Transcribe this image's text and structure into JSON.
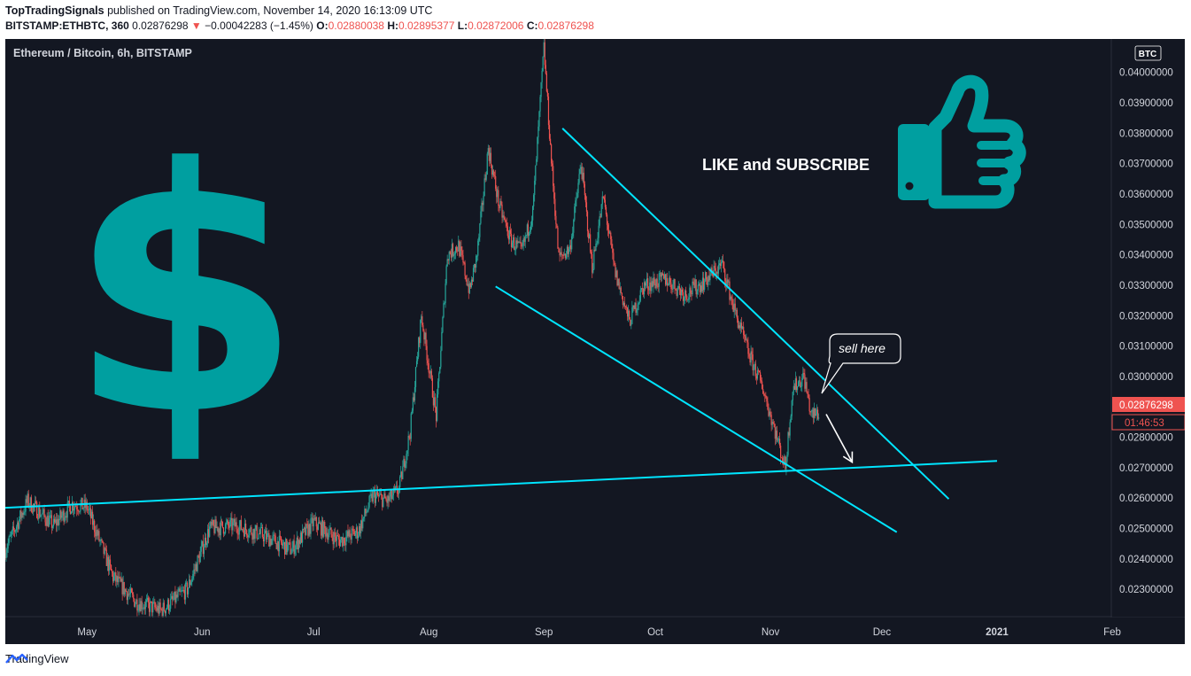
{
  "header": {
    "author": "TopTradingSignals",
    "published_text": "published on TradingView.com, November 14, 2020 16:13:09 UTC",
    "symbol": "BITSTAMP:ETHBTC, 360",
    "last": "0.02876298",
    "arrow": "▼",
    "change": "−0.00042283 (−1.45%)",
    "o_label": "O:",
    "o_value": "0.02880038",
    "h_label": "H:",
    "h_value": "0.02895377",
    "l_label": "L:",
    "l_value": "0.02872006",
    "c_label": "C:",
    "c_value": "0.02876298"
  },
  "chart_title": "Ethereum / Bitcoin, 6h, BITSTAMP",
  "currency_badge": "BTC",
  "price_tag": "0.02876298",
  "countdown_tag": "01:46:53",
  "annotation_like": "LIKE and SUBSCRIBE",
  "annotation_sell": "sell here",
  "dollar_symbol": "$",
  "thumbs_icon": "thumbs-up-icon",
  "footer_brand": "TradingView",
  "colors": {
    "background": "#131722",
    "up": "#26a69a",
    "down": "#ef5350",
    "trendline": "#00e5ff",
    "teal_art": "#009fa0",
    "axis_text": "#d1d4dc"
  },
  "chart_data": {
    "type": "candlestick",
    "title": "Ethereum / Bitcoin, 6h, BITSTAMP",
    "x_ticks": [
      "May",
      "Jun",
      "Jul",
      "Aug",
      "Sep",
      "Oct",
      "Nov",
      "Dec",
      "2021",
      "Feb"
    ],
    "y_ticks": [
      "0.04000000",
      "0.03900000",
      "0.03800000",
      "0.03700000",
      "0.03600000",
      "0.03500000",
      "0.03400000",
      "0.03300000",
      "0.03200000",
      "0.03100000",
      "0.03000000",
      "0.02900000",
      "0.02800000",
      "0.02700000",
      "0.02600000",
      "0.02500000",
      "0.02400000",
      "0.02300000"
    ],
    "ylim": [
      0.0221,
      0.0411
    ],
    "xlim": [
      "2020-04-09",
      "2021-02-01"
    ],
    "grid": false,
    "series": [
      {
        "values": [
          [
            "2020-04-09",
            0.0243
          ],
          [
            "2020-04-15",
            0.0259
          ],
          [
            "2020-04-22",
            0.0251
          ],
          [
            "2020-04-27",
            0.0258
          ],
          [
            "2020-05-01",
            0.0257
          ],
          [
            "2020-05-08",
            0.0234
          ],
          [
            "2020-05-14",
            0.0226
          ],
          [
            "2020-05-21",
            0.0223
          ],
          [
            "2020-05-28",
            0.023
          ],
          [
            "2020-06-03",
            0.025
          ],
          [
            "2020-06-10",
            0.0251
          ],
          [
            "2020-06-17",
            0.0248
          ],
          [
            "2020-06-25",
            0.0243
          ],
          [
            "2020-07-01",
            0.0252
          ],
          [
            "2020-07-08",
            0.0246
          ],
          [
            "2020-07-13",
            0.0249
          ],
          [
            "2020-07-17",
            0.0261
          ],
          [
            "2020-07-21",
            0.0259
          ],
          [
            "2020-07-24",
            0.0263
          ],
          [
            "2020-07-27",
            0.0282
          ],
          [
            "2020-07-30",
            0.032
          ],
          [
            "2020-08-03",
            0.0287
          ],
          [
            "2020-08-06",
            0.034
          ],
          [
            "2020-08-09",
            0.0343
          ],
          [
            "2020-08-12",
            0.0328
          ],
          [
            "2020-08-14",
            0.034
          ],
          [
            "2020-08-17",
            0.0375
          ],
          [
            "2020-08-20",
            0.0356
          ],
          [
            "2020-08-23",
            0.0345
          ],
          [
            "2020-08-26",
            0.0341
          ],
          [
            "2020-08-29",
            0.0354
          ],
          [
            "2020-09-01",
            0.0408
          ],
          [
            "2020-09-03",
            0.0371
          ],
          [
            "2020-09-05",
            0.0339
          ],
          [
            "2020-09-08",
            0.0342
          ],
          [
            "2020-09-11",
            0.037
          ],
          [
            "2020-09-14",
            0.0336
          ],
          [
            "2020-09-17",
            0.0359
          ],
          [
            "2020-09-20",
            0.0335
          ],
          [
            "2020-09-24",
            0.0318
          ],
          [
            "2020-09-28",
            0.033
          ],
          [
            "2020-10-04",
            0.0332
          ],
          [
            "2020-10-09",
            0.0327
          ],
          [
            "2020-10-14",
            0.0331
          ],
          [
            "2020-10-19",
            0.0337
          ],
          [
            "2020-10-22",
            0.0323
          ],
          [
            "2020-10-26",
            0.0308
          ],
          [
            "2020-10-30",
            0.0296
          ],
          [
            "2020-11-02",
            0.0283
          ],
          [
            "2020-11-05",
            0.027
          ],
          [
            "2020-11-07",
            0.0296
          ],
          [
            "2020-11-10",
            0.03
          ],
          [
            "2020-11-12",
            0.0287
          ],
          [
            "2020-11-14",
            0.0288
          ]
        ]
      }
    ],
    "trendlines": [
      {
        "from": [
          "2020-04-09",
          0.02568
        ],
        "to": [
          "2021-01-01",
          0.02722
        ]
      },
      {
        "from": [
          "2020-09-06",
          0.03816
        ],
        "to": [
          "2020-12-19",
          0.02597
        ]
      },
      {
        "from": [
          "2020-08-19",
          0.03296
        ],
        "to": [
          "2020-12-05",
          0.02488
        ]
      },
      {
        "from": [
          "2020-11-16",
          0.02876
        ],
        "to": [
          "2020-11-23",
          0.02718
        ]
      }
    ]
  }
}
